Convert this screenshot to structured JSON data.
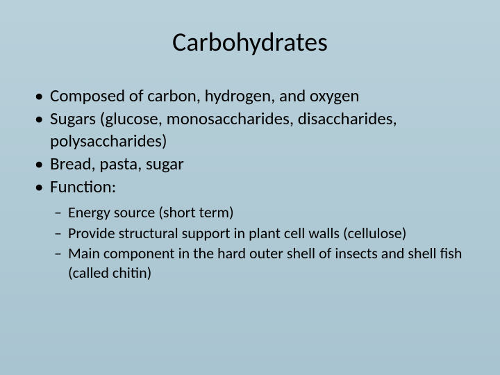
{
  "slide": {
    "title": "Carbohydrates",
    "background_gradient_top": "#b8d0da",
    "background_gradient_bottom": "#a8c4d0",
    "title_fontsize": 38,
    "title_color": "#000000",
    "bullet_fontsize": 25,
    "bullet_color": "#000000",
    "sub_bullet_fontsize": 22,
    "sub_bullet_color": "#000000",
    "font_family": "Calibri",
    "bullets": [
      {
        "text": "Composed of carbon, hydrogen, and oxygen"
      },
      {
        "text": "Sugars (glucose, monosaccharides, disaccharides, polysaccharides)"
      },
      {
        "text": "Bread, pasta, sugar"
      },
      {
        "text": "Function:",
        "sub_bullets": [
          "Energy source (short term)",
          "Provide structural support in plant cell walls (cellulose)",
          "Main component in the hard outer shell of insects and shell fish (called chitin)"
        ]
      }
    ]
  }
}
